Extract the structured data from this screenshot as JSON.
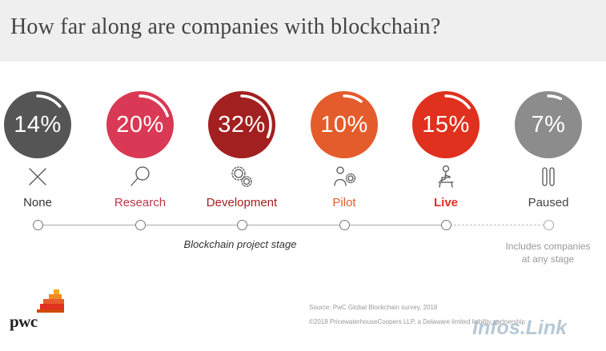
{
  "title": "How far along are companies with blockchain?",
  "colors": {
    "header_bg": "#efefef",
    "track": "#aaaaaa",
    "dot_border": "#777777",
    "logo_orange": "#e0301e",
    "logo_yellow": "#f5a623"
  },
  "chart_data": {
    "type": "bar",
    "title": "How far along are companies with blockchain?",
    "xlabel": "Blockchain project stage",
    "ylabel": "",
    "categories": [
      "None",
      "Research",
      "Development",
      "Pilot",
      "Live",
      "Paused"
    ],
    "values": [
      14,
      20,
      32,
      10,
      15,
      7
    ],
    "unit": "%",
    "value_labels": [
      "14%",
      "20%",
      "32%",
      "10%",
      "15%",
      "7%"
    ],
    "colors": [
      "#555555",
      "#d93954",
      "#a32020",
      "#e45c2b",
      "#e0301e",
      "#8c8c8c"
    ],
    "label_colors": [
      "#333333",
      "#c0354a",
      "#a32020",
      "#e45c2b",
      "#e0301e",
      "#444444"
    ],
    "label_bold": [
      false,
      false,
      false,
      false,
      true,
      false
    ],
    "icons": [
      "x-icon",
      "magnifier-icon",
      "gears-icon",
      "person-gear-icon",
      "person-laptop-icon",
      "pause-icon"
    ],
    "note": "Includes companies at any stage",
    "note_lines": [
      "Includes companies",
      "at any stage"
    ]
  },
  "footer": {
    "source": "Source: PwC Global Blockchain survey, 2018",
    "copyright": "©2018 PricewaterhouseCoopers LLP, a Delaware limited liability partnership"
  },
  "logo": {
    "text": "pwc"
  },
  "watermark": "Infos.Link"
}
